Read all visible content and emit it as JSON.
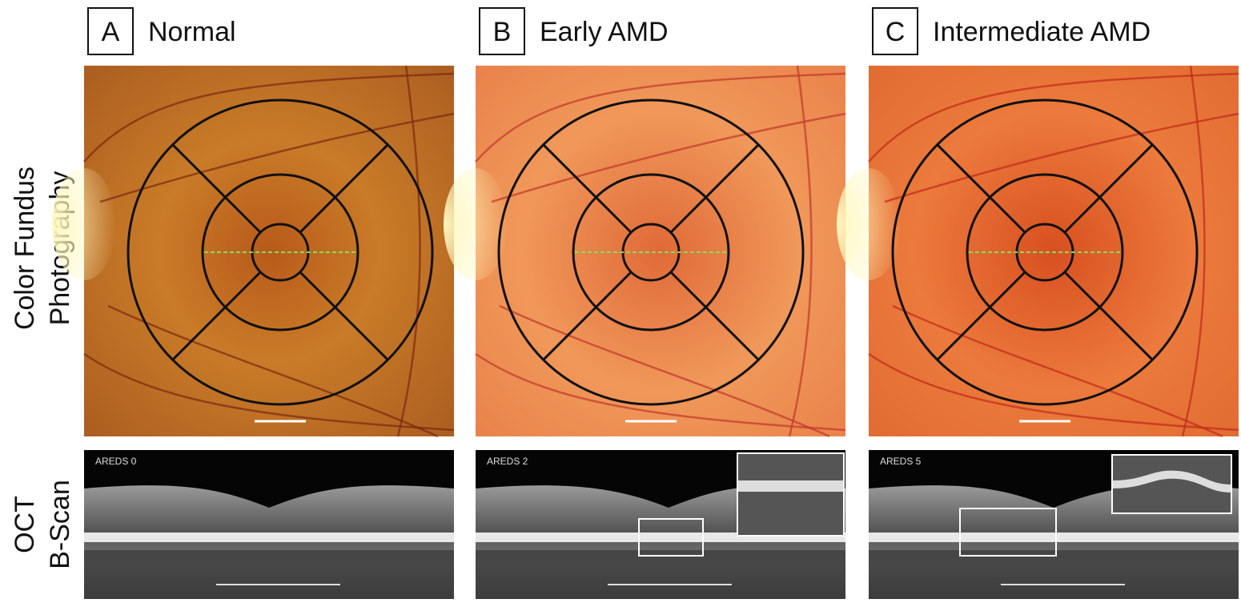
{
  "panels": [
    {
      "letter": "A",
      "title": "Normal",
      "oct_label": "AREDS 0"
    },
    {
      "letter": "B",
      "title": "Early AMD",
      "oct_label": "AREDS 2"
    },
    {
      "letter": "C",
      "title": "Intermediate AMD",
      "oct_label": "AREDS 5"
    }
  ],
  "row_labels": [
    {
      "lines": [
        "Color Fundus",
        "Photography"
      ]
    },
    {
      "lines": [
        "OCT",
        "B-Scan"
      ]
    }
  ]
}
